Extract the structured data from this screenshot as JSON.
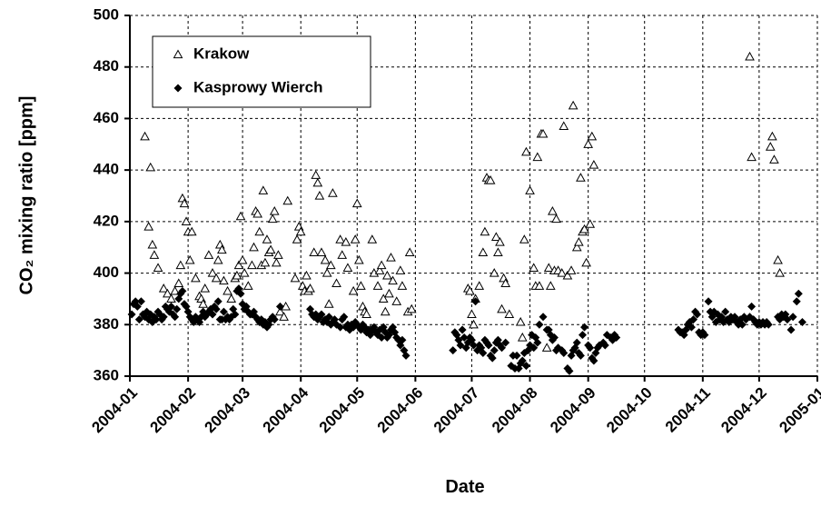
{
  "chart_data": {
    "type": "scatter",
    "xlabel": "Date",
    "ylabel": "CO₂ mixing ratio [ppm]",
    "xlim": [
      0,
      366
    ],
    "ylim": [
      360,
      500
    ],
    "xticks": [
      {
        "value": 0,
        "label": "2004-01"
      },
      {
        "value": 31,
        "label": "2004-02"
      },
      {
        "value": 60,
        "label": "2004-03"
      },
      {
        "value": 91,
        "label": "2004-04"
      },
      {
        "value": 121,
        "label": "2004-05"
      },
      {
        "value": 152,
        "label": "2004-06"
      },
      {
        "value": 182,
        "label": "2004-07"
      },
      {
        "value": 213,
        "label": "2004-08"
      },
      {
        "value": 244,
        "label": "2004-09"
      },
      {
        "value": 274,
        "label": "2004-10"
      },
      {
        "value": 305,
        "label": "2004-11"
      },
      {
        "value": 335,
        "label": "2004-12"
      },
      {
        "value": 366,
        "label": "2005-01"
      }
    ],
    "yticks": [
      360,
      380,
      400,
      420,
      440,
      460,
      480,
      500
    ],
    "grid": true,
    "legend": "top-left",
    "series": [
      {
        "name": "Krakow",
        "color": "#000000",
        "marker": "triangle-open",
        "x": [
          8,
          10,
          11,
          12,
          13,
          15,
          18,
          20,
          22,
          24,
          26,
          27,
          28,
          29,
          30,
          31,
          32,
          33,
          35,
          37,
          38,
          39,
          40,
          42,
          44,
          46,
          47,
          48,
          49,
          50,
          52,
          54,
          56,
          57,
          58,
          59,
          60,
          61,
          63,
          65,
          66,
          67,
          68,
          69,
          70,
          71,
          72,
          73,
          74,
          75,
          76,
          77,
          78,
          79,
          80,
          82,
          83,
          84,
          88,
          89,
          90,
          91,
          92,
          93,
          94,
          95,
          96,
          98,
          99,
          100,
          101,
          102,
          104,
          105,
          106,
          107,
          108,
          110,
          112,
          113,
          115,
          116,
          119,
          120,
          121,
          122,
          123,
          124,
          125,
          126,
          128,
          129,
          130,
          132,
          133,
          134,
          135,
          136,
          137,
          138,
          139,
          140,
          142,
          144,
          145,
          148,
          149,
          150,
          180,
          181,
          182,
          183,
          184,
          186,
          188,
          189,
          190,
          191,
          192,
          194,
          195,
          196,
          197,
          198,
          199,
          200,
          202,
          208,
          209,
          210,
          211,
          213,
          215,
          216,
          217,
          218,
          219,
          220,
          222,
          223,
          224,
          225,
          226,
          227,
          228,
          230,
          231,
          233,
          235,
          236,
          238,
          239,
          240,
          241,
          242,
          243,
          244,
          245,
          246,
          247,
          330,
          331,
          341,
          342,
          343,
          345,
          346
        ],
        "values": [
          453,
          418,
          441,
          411,
          407,
          402,
          394,
          392,
          390,
          393,
          396,
          403,
          429,
          427,
          420,
          416,
          405,
          416,
          398,
          391,
          390,
          388,
          394,
          407,
          400,
          398,
          405,
          411,
          409,
          397,
          393,
          390,
          398,
          399,
          403,
          422,
          405,
          400,
          395,
          403,
          410,
          424,
          423,
          416,
          403,
          432,
          404,
          413,
          408,
          409,
          421,
          424,
          404,
          407,
          385,
          383,
          387,
          428,
          398,
          413,
          418,
          416,
          395,
          393,
          399,
          393,
          394,
          408,
          438,
          435,
          430,
          408,
          405,
          400,
          388,
          403,
          431,
          396,
          413,
          407,
          412,
          402,
          393,
          413,
          427,
          405,
          395,
          387,
          385,
          384,
          378,
          413,
          400,
          395,
          401,
          403,
          390,
          385,
          399,
          392,
          406,
          397,
          389,
          401,
          395,
          385,
          408,
          386,
          394,
          393,
          384,
          380,
          390,
          395,
          408,
          416,
          437,
          436,
          436,
          400,
          414,
          408,
          412,
          386,
          398,
          396,
          384,
          381,
          375,
          413,
          447,
          432,
          402,
          395,
          445,
          395,
          454,
          454,
          371,
          402,
          395,
          424,
          401,
          421,
          401,
          400,
          457,
          399,
          401,
          465,
          410,
          412,
          437,
          416,
          417,
          404,
          450,
          419,
          453,
          442,
          484,
          445,
          449,
          453,
          444,
          405,
          400
        ]
      },
      {
        "name": "Kasprowy Wierch",
        "color": "#000000",
        "marker": "diamond",
        "x": [
          1,
          2,
          3,
          4,
          5,
          6,
          7,
          8,
          9,
          10,
          11,
          12,
          13,
          14,
          15,
          16,
          17,
          18,
          19,
          20,
          21,
          22,
          23,
          24,
          25,
          26,
          27,
          28,
          29,
          30,
          31,
          32,
          33,
          34,
          35,
          36,
          37,
          38,
          39,
          40,
          41,
          42,
          43,
          44,
          45,
          46,
          47,
          48,
          49,
          50,
          51,
          52,
          53,
          54,
          55,
          56,
          57,
          58,
          59,
          60,
          61,
          62,
          63,
          64,
          65,
          66,
          67,
          68,
          69,
          70,
          71,
          72,
          73,
          74,
          75,
          76,
          77,
          80,
          96,
          97,
          98,
          99,
          100,
          101,
          102,
          103,
          104,
          105,
          106,
          107,
          108,
          109,
          110,
          112,
          113,
          114,
          115,
          116,
          117,
          118,
          119,
          120,
          121,
          122,
          123,
          124,
          125,
          126,
          127,
          128,
          129,
          130,
          131,
          132,
          133,
          134,
          135,
          136,
          137,
          138,
          139,
          140,
          141,
          142,
          143,
          144,
          145,
          146,
          147,
          172,
          173,
          174,
          175,
          176,
          177,
          178,
          179,
          180,
          181,
          182,
          183,
          184,
          185,
          186,
          187,
          188,
          189,
          190,
          191,
          192,
          193,
          194,
          195,
          196,
          197,
          198,
          200,
          203,
          204,
          205,
          206,
          207,
          208,
          209,
          210,
          211,
          212,
          213,
          214,
          215,
          216,
          217,
          218,
          220,
          222,
          223,
          224,
          225,
          226,
          227,
          228,
          230,
          231,
          233,
          234,
          235,
          236,
          237,
          238,
          239,
          240,
          241,
          242,
          244,
          245,
          246,
          247,
          248,
          249,
          250,
          252,
          253,
          254,
          256,
          257,
          258,
          259,
          292,
          293,
          294,
          295,
          296,
          297,
          298,
          299,
          300,
          301,
          302,
          303,
          304,
          305,
          306,
          308,
          309,
          310,
          311,
          312,
          313,
          314,
          315,
          316,
          317,
          318,
          319,
          320,
          321,
          322,
          323,
          324,
          325,
          326,
          327,
          328,
          330,
          331,
          332,
          333,
          334,
          335,
          336,
          337,
          338,
          339,
          340,
          345,
          346,
          347,
          348,
          349,
          350,
          352,
          353,
          355,
          356,
          358
        ],
        "values": [
          384,
          388,
          389,
          387,
          382,
          389,
          384,
          383,
          385,
          382,
          384,
          381,
          383,
          382,
          385,
          384,
          382,
          383,
          387,
          386,
          385,
          387,
          384,
          383,
          386,
          390,
          392,
          393,
          388,
          387,
          385,
          383,
          382,
          381,
          383,
          382,
          381,
          383,
          385,
          383,
          384,
          385,
          386,
          384,
          387,
          386,
          389,
          382,
          382,
          385,
          382,
          383,
          382,
          383,
          386,
          384,
          393,
          394,
          392,
          388,
          386,
          387,
          385,
          384,
          384,
          385,
          383,
          382,
          381,
          382,
          380,
          381,
          379,
          380,
          382,
          383,
          382,
          387,
          386,
          384,
          383,
          384,
          382,
          383,
          384,
          381,
          382,
          381,
          383,
          380,
          381,
          382,
          380,
          379,
          382,
          383,
          379,
          380,
          378,
          380,
          379,
          381,
          380,
          379,
          378,
          380,
          379,
          377,
          378,
          376,
          378,
          379,
          377,
          376,
          378,
          375,
          379,
          377,
          375,
          376,
          378,
          379,
          377,
          375,
          374,
          372,
          374,
          370,
          368,
          370,
          377,
          376,
          374,
          372,
          378,
          375,
          371,
          373,
          375,
          374,
          372,
          389,
          370,
          372,
          371,
          369,
          374,
          373,
          372,
          368,
          367,
          370,
          373,
          374,
          372,
          371,
          373,
          364,
          368,
          363,
          368,
          363,
          365,
          366,
          369,
          364,
          370,
          372,
          376,
          371,
          375,
          373,
          380,
          383,
          378,
          378,
          376,
          374,
          375,
          370,
          371,
          370,
          369,
          363,
          362,
          368,
          370,
          371,
          373,
          369,
          368,
          376,
          379,
          372,
          371,
          367,
          366,
          369,
          371,
          372,
          373,
          372,
          376,
          375,
          374,
          376,
          375,
          378,
          377,
          377,
          376,
          378,
          380,
          381,
          379,
          382,
          385,
          384,
          377,
          376,
          377,
          376,
          389,
          385,
          383,
          385,
          381,
          384,
          382,
          383,
          381,
          385,
          382,
          381,
          383,
          382,
          383,
          381,
          380,
          382,
          380,
          383,
          382,
          383,
          387,
          382,
          381,
          380,
          381,
          380,
          381,
          380,
          381,
          380,
          383,
          382,
          384,
          383,
          384,
          382,
          378,
          383,
          389,
          392,
          381
        ]
      }
    ]
  }
}
